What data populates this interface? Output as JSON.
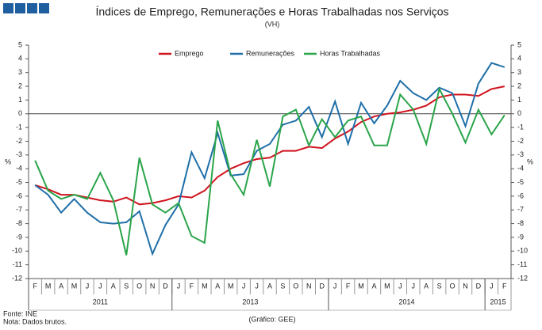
{
  "chart_data": {
    "type": "line",
    "title": "Índices de Emprego, Remunerações e Horas Trabalhadas nos Serviços",
    "subtitle": "(VH)",
    "y_label": "%",
    "y2_label": "%",
    "categories": [
      "F",
      "M",
      "A",
      "M",
      "J",
      "J",
      "A",
      "S",
      "O",
      "N",
      "D",
      "J",
      "F",
      "M",
      "A",
      "M",
      "J",
      "J",
      "A",
      "S",
      "O",
      "N",
      "D",
      "J",
      "F",
      "M",
      "A",
      "M",
      "J",
      "J",
      "A",
      "S",
      "O",
      "N",
      "D",
      "J",
      "F"
    ],
    "year_groups": [
      {
        "label": "2011",
        "count": 11
      },
      {
        "label": "2013",
        "count": 12
      },
      {
        "label": "2014",
        "count": 12
      },
      {
        "label": "2015",
        "count": 2
      }
    ],
    "series": [
      {
        "name": "Emprego",
        "color": "#d0141e",
        "values": [
          -5.2,
          -5.5,
          -5.9,
          -5.9,
          -6.1,
          -6.3,
          -6.4,
          -6.1,
          -6.6,
          -6.5,
          -6.3,
          -6.0,
          -6.1,
          -5.6,
          -4.6,
          -4.0,
          -3.6,
          -3.3,
          -3.2,
          -2.7,
          -2.7,
          -2.4,
          -2.5,
          -1.8,
          -1.3,
          -0.6,
          -0.2,
          0.0,
          0.1,
          0.3,
          0.6,
          1.2,
          1.4,
          1.4,
          1.3,
          1.8,
          2.0
        ]
      },
      {
        "name": "Remunerações",
        "color": "#1f6fa8",
        "values": [
          -5.2,
          -5.9,
          -7.2,
          -6.2,
          -7.2,
          -7.9,
          -8.0,
          -7.9,
          -7.1,
          -10.2,
          -8.1,
          -6.6,
          -2.8,
          -4.7,
          -1.4,
          -4.5,
          -4.4,
          -2.7,
          -2.2,
          -0.8,
          -0.5,
          0.5,
          -1.7,
          0.9,
          -2.2,
          0.8,
          -0.7,
          0.6,
          2.4,
          1.5,
          1.0,
          1.9,
          1.5,
          -0.9,
          2.2,
          3.7,
          3.4
        ]
      },
      {
        "name": "Horas Trabalhadas",
        "color": "#2aa54a",
        "values": [
          -3.4,
          -5.6,
          -6.2,
          -5.9,
          -6.2,
          -4.3,
          -6.3,
          -10.3,
          -3.2,
          -6.6,
          -7.2,
          -6.5,
          -8.9,
          -9.4,
          -0.5,
          -4.4,
          -5.9,
          -1.9,
          -5.3,
          -0.2,
          0.3,
          -2.3,
          -0.4,
          -1.7,
          -0.5,
          -0.2,
          -2.3,
          -2.3,
          1.4,
          0.3,
          -2.2,
          1.8,
          0.0,
          -2.1,
          0.3,
          -1.5,
          -0.1
        ]
      }
    ],
    "ylim": [
      -12,
      5
    ],
    "yticks": [
      -12,
      -11,
      -10,
      -9,
      -8,
      -7,
      -6,
      -5,
      -4,
      -3,
      -2,
      -1,
      0,
      1,
      2,
      3,
      4,
      5
    ],
    "legend": "top",
    "source": "Fonte: INE",
    "note": "Nota: Dados brutos.",
    "credit": "(Gráfico: GEE)"
  }
}
